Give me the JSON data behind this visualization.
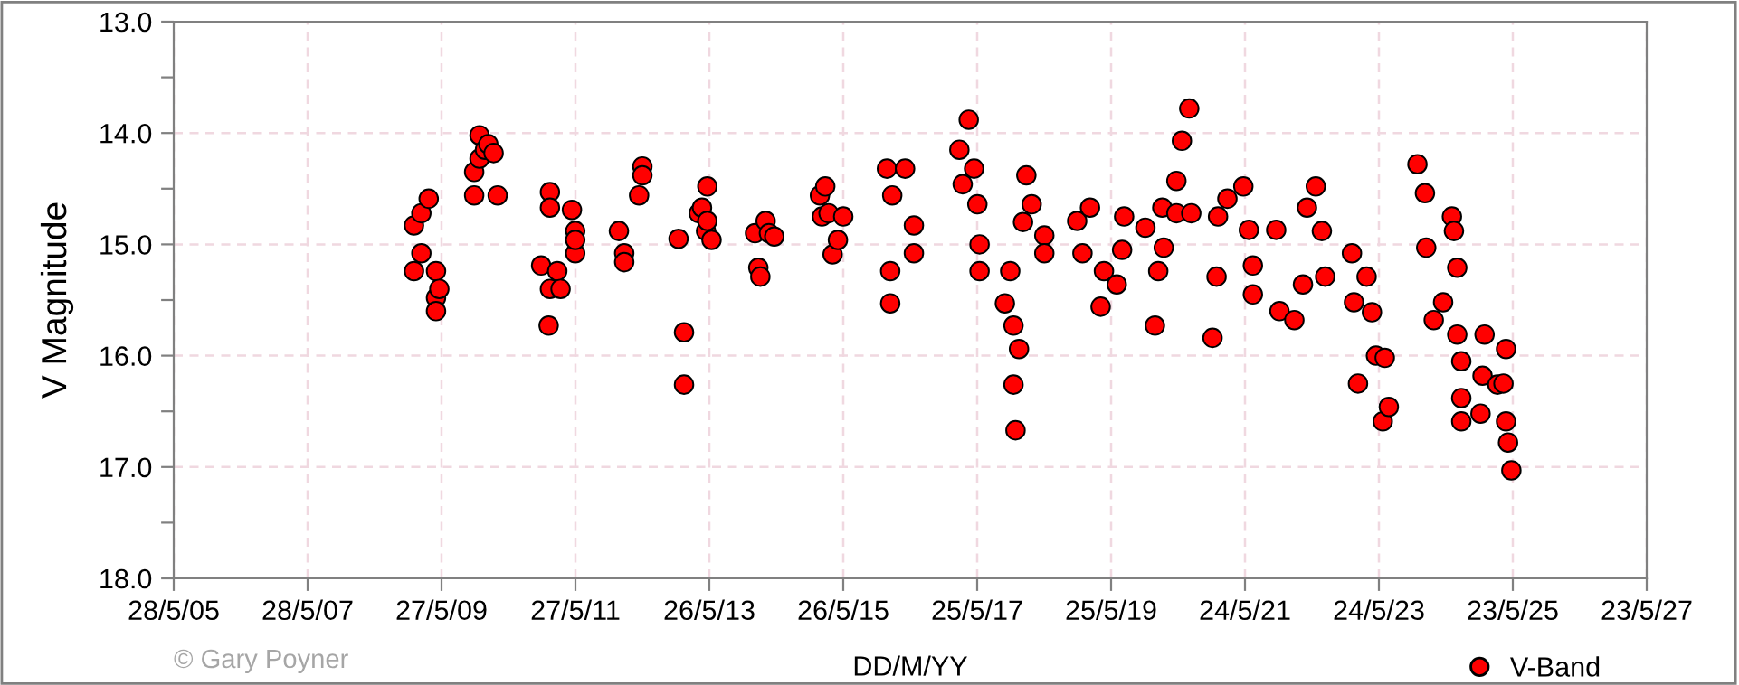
{
  "chart_data": {
    "type": "scatter",
    "xlabel": "DD/M/YY",
    "ylabel": "V Magnitude",
    "annotations": [
      "© Gary Poyner"
    ],
    "xlim": [
      "2005-05-28",
      "2027-05-23"
    ],
    "xticks": [
      {
        "value": "2005-05-28",
        "label": "28/5/05"
      },
      {
        "value": "2007-05-28",
        "label": "28/5/07"
      },
      {
        "value": "2009-05-27",
        "label": "27/5/09"
      },
      {
        "value": "2011-05-27",
        "label": "27/5/11"
      },
      {
        "value": "2013-05-26",
        "label": "26/5/13"
      },
      {
        "value": "2015-05-26",
        "label": "26/5/15"
      },
      {
        "value": "2017-05-25",
        "label": "25/5/17"
      },
      {
        "value": "2019-05-25",
        "label": "25/5/19"
      },
      {
        "value": "2021-05-24",
        "label": "24/5/21"
      },
      {
        "value": "2023-05-24",
        "label": "24/5/23"
      },
      {
        "value": "2025-05-23",
        "label": "23/5/25"
      },
      {
        "value": "2027-05-23",
        "label": "23/5/27"
      }
    ],
    "ylim": [
      18.0,
      13.0
    ],
    "yticks": [
      {
        "value": 13.0,
        "label": "13.0"
      },
      {
        "value": 13.5,
        "label": null
      },
      {
        "value": 14.0,
        "label": "14.0"
      },
      {
        "value": 14.5,
        "label": null
      },
      {
        "value": 15.0,
        "label": "15.0"
      },
      {
        "value": 15.5,
        "label": null
      },
      {
        "value": 16.0,
        "label": "16.0"
      },
      {
        "value": 16.5,
        "label": null
      },
      {
        "value": 17.0,
        "label": "17.0"
      },
      {
        "value": 17.5,
        "label": null
      },
      {
        "value": 18.0,
        "label": "18.0"
      }
    ],
    "grid": true,
    "legend": "bottom right",
    "marker": "circle",
    "series": [
      {
        "name": "V-Band",
        "color": "#ff0000",
        "x": [
          "2008-12-28",
          "2009-02-06",
          "2009-03-18",
          "2008-12-28",
          "2009-02-06",
          "2009-04-27",
          "2009-04-27",
          "2009-04-27",
          "2009-05-15",
          "2009-11-21",
          "2009-12-20",
          "2009-12-20",
          "2010-01-19",
          "2010-02-06",
          "2010-03-07",
          "2009-11-21",
          "2010-03-29",
          "2010-11-21",
          "2011-01-08",
          "2011-01-08",
          "2011-01-01",
          "2011-01-08",
          "2011-02-17",
          "2011-03-07",
          "2011-05-08",
          "2011-05-26",
          "2011-05-26",
          "2011-05-26",
          "2012-01-19",
          "2012-02-17",
          "2012-02-17",
          "2012-05-08",
          "2012-05-26",
          "2012-05-26",
          "2012-12-09",
          "2013-01-08",
          "2013-01-08",
          "2013-03-29",
          "2013-04-16",
          "2013-05-15",
          "2013-05-08",
          "2013-06-07",
          "2013-05-15",
          "2014-01-30",
          "2014-02-17",
          "2014-02-28",
          "2014-03-29",
          "2014-04-16",
          "2014-05-15",
          "2015-01-19",
          "2015-02-17",
          "2015-01-30",
          "2015-03-07",
          "2015-03-29",
          "2015-04-27",
          "2015-05-26",
          "2016-01-19",
          "2016-04-27",
          "2016-02-17",
          "2016-02-06",
          "2016-02-06",
          "2016-06-14",
          "2016-06-14",
          "2017-04-09",
          "2017-02-17",
          "2017-03-07",
          "2017-05-08",
          "2017-05-26",
          "2017-06-07",
          "2017-06-07",
          "2017-10-23",
          "2017-11-21",
          "2017-12-09",
          "2017-12-09",
          "2017-12-20",
          "2018-01-08",
          "2018-02-17",
          "2018-01-30",
          "2018-03-18",
          "2018-05-26",
          "2018-05-26",
          "2018-11-21",
          "2019-01-30",
          "2018-12-20",
          "2019-03-29",
          "2019-04-16",
          "2019-06-25",
          "2019-07-24",
          "2019-08-04",
          "2019-11-28",
          "2020-01-19",
          "2020-02-06",
          "2020-02-28",
          "2020-03-07",
          "2020-05-15",
          "2020-05-15",
          "2020-06-14",
          "2020-07-24",
          "2020-08-04",
          "2020-11-28",
          "2020-12-20",
          "2020-12-28",
          "2021-02-17",
          "2021-05-15",
          "2021-06-14",
          "2021-07-06",
          "2021-07-06",
          "2021-11-10",
          "2021-11-28",
          "2022-02-17",
          "2022-04-05",
          "2022-04-27",
          "2022-06-14",
          "2022-07-17",
          "2022-08-04",
          "2022-12-28",
          "2023-01-08",
          "2023-01-30",
          "2023-03-18",
          "2023-04-16",
          "2023-05-08",
          "2023-06-14",
          "2023-06-25",
          "2023-07-17",
          "2023-12-20",
          "2024-01-30",
          "2024-02-06",
          "2024-03-18",
          "2024-05-08",
          "2024-06-25",
          "2024-07-06",
          "2024-07-24",
          "2024-07-24",
          "2024-08-15",
          "2024-08-15",
          "2024-08-15",
          "2024-12-20",
          "2024-12-09",
          "2024-11-28",
          "2025-02-28",
          "2025-04-16",
          "2025-04-02",
          "2025-04-16",
          "2025-04-27",
          "2025-05-15"
        ],
        "values": [
          14.83,
          14.72,
          14.59,
          15.24,
          15.08,
          15.24,
          15.48,
          15.6,
          15.4,
          14.35,
          14.02,
          14.23,
          14.15,
          14.1,
          14.18,
          14.56,
          14.56,
          15.19,
          14.53,
          14.67,
          15.73,
          15.4,
          15.24,
          15.4,
          14.69,
          14.88,
          15.08,
          14.96,
          14.88,
          15.08,
          15.16,
          14.56,
          14.3,
          14.38,
          14.95,
          15.79,
          16.26,
          14.72,
          14.67,
          14.48,
          14.88,
          14.96,
          14.79,
          14.9,
          15.21,
          15.29,
          14.79,
          14.9,
          14.93,
          14.56,
          14.48,
          14.75,
          14.72,
          15.09,
          14.96,
          14.75,
          14.32,
          14.32,
          14.56,
          15.24,
          15.53,
          14.83,
          15.08,
          13.88,
          14.15,
          14.46,
          14.32,
          14.64,
          15.0,
          15.24,
          15.53,
          15.24,
          15.73,
          16.26,
          16.67,
          15.94,
          14.38,
          14.8,
          14.64,
          14.92,
          15.08,
          14.79,
          14.67,
          15.08,
          15.56,
          15.24,
          15.36,
          15.05,
          14.75,
          14.85,
          15.73,
          15.24,
          14.67,
          15.03,
          14.72,
          14.43,
          14.07,
          13.78,
          14.72,
          15.84,
          15.29,
          14.75,
          14.59,
          14.48,
          14.87,
          15.19,
          15.45,
          14.87,
          15.6,
          15.68,
          15.36,
          14.67,
          14.48,
          14.88,
          15.29,
          15.08,
          15.52,
          16.25,
          15.29,
          15.61,
          16.0,
          16.59,
          16.02,
          16.46,
          14.28,
          14.54,
          15.03,
          15.68,
          15.52,
          14.75,
          14.88,
          15.21,
          15.81,
          16.05,
          16.38,
          16.59,
          15.81,
          16.18,
          16.52,
          16.26,
          15.94,
          16.25,
          16.59,
          16.78,
          17.03
        ]
      }
    ]
  }
}
